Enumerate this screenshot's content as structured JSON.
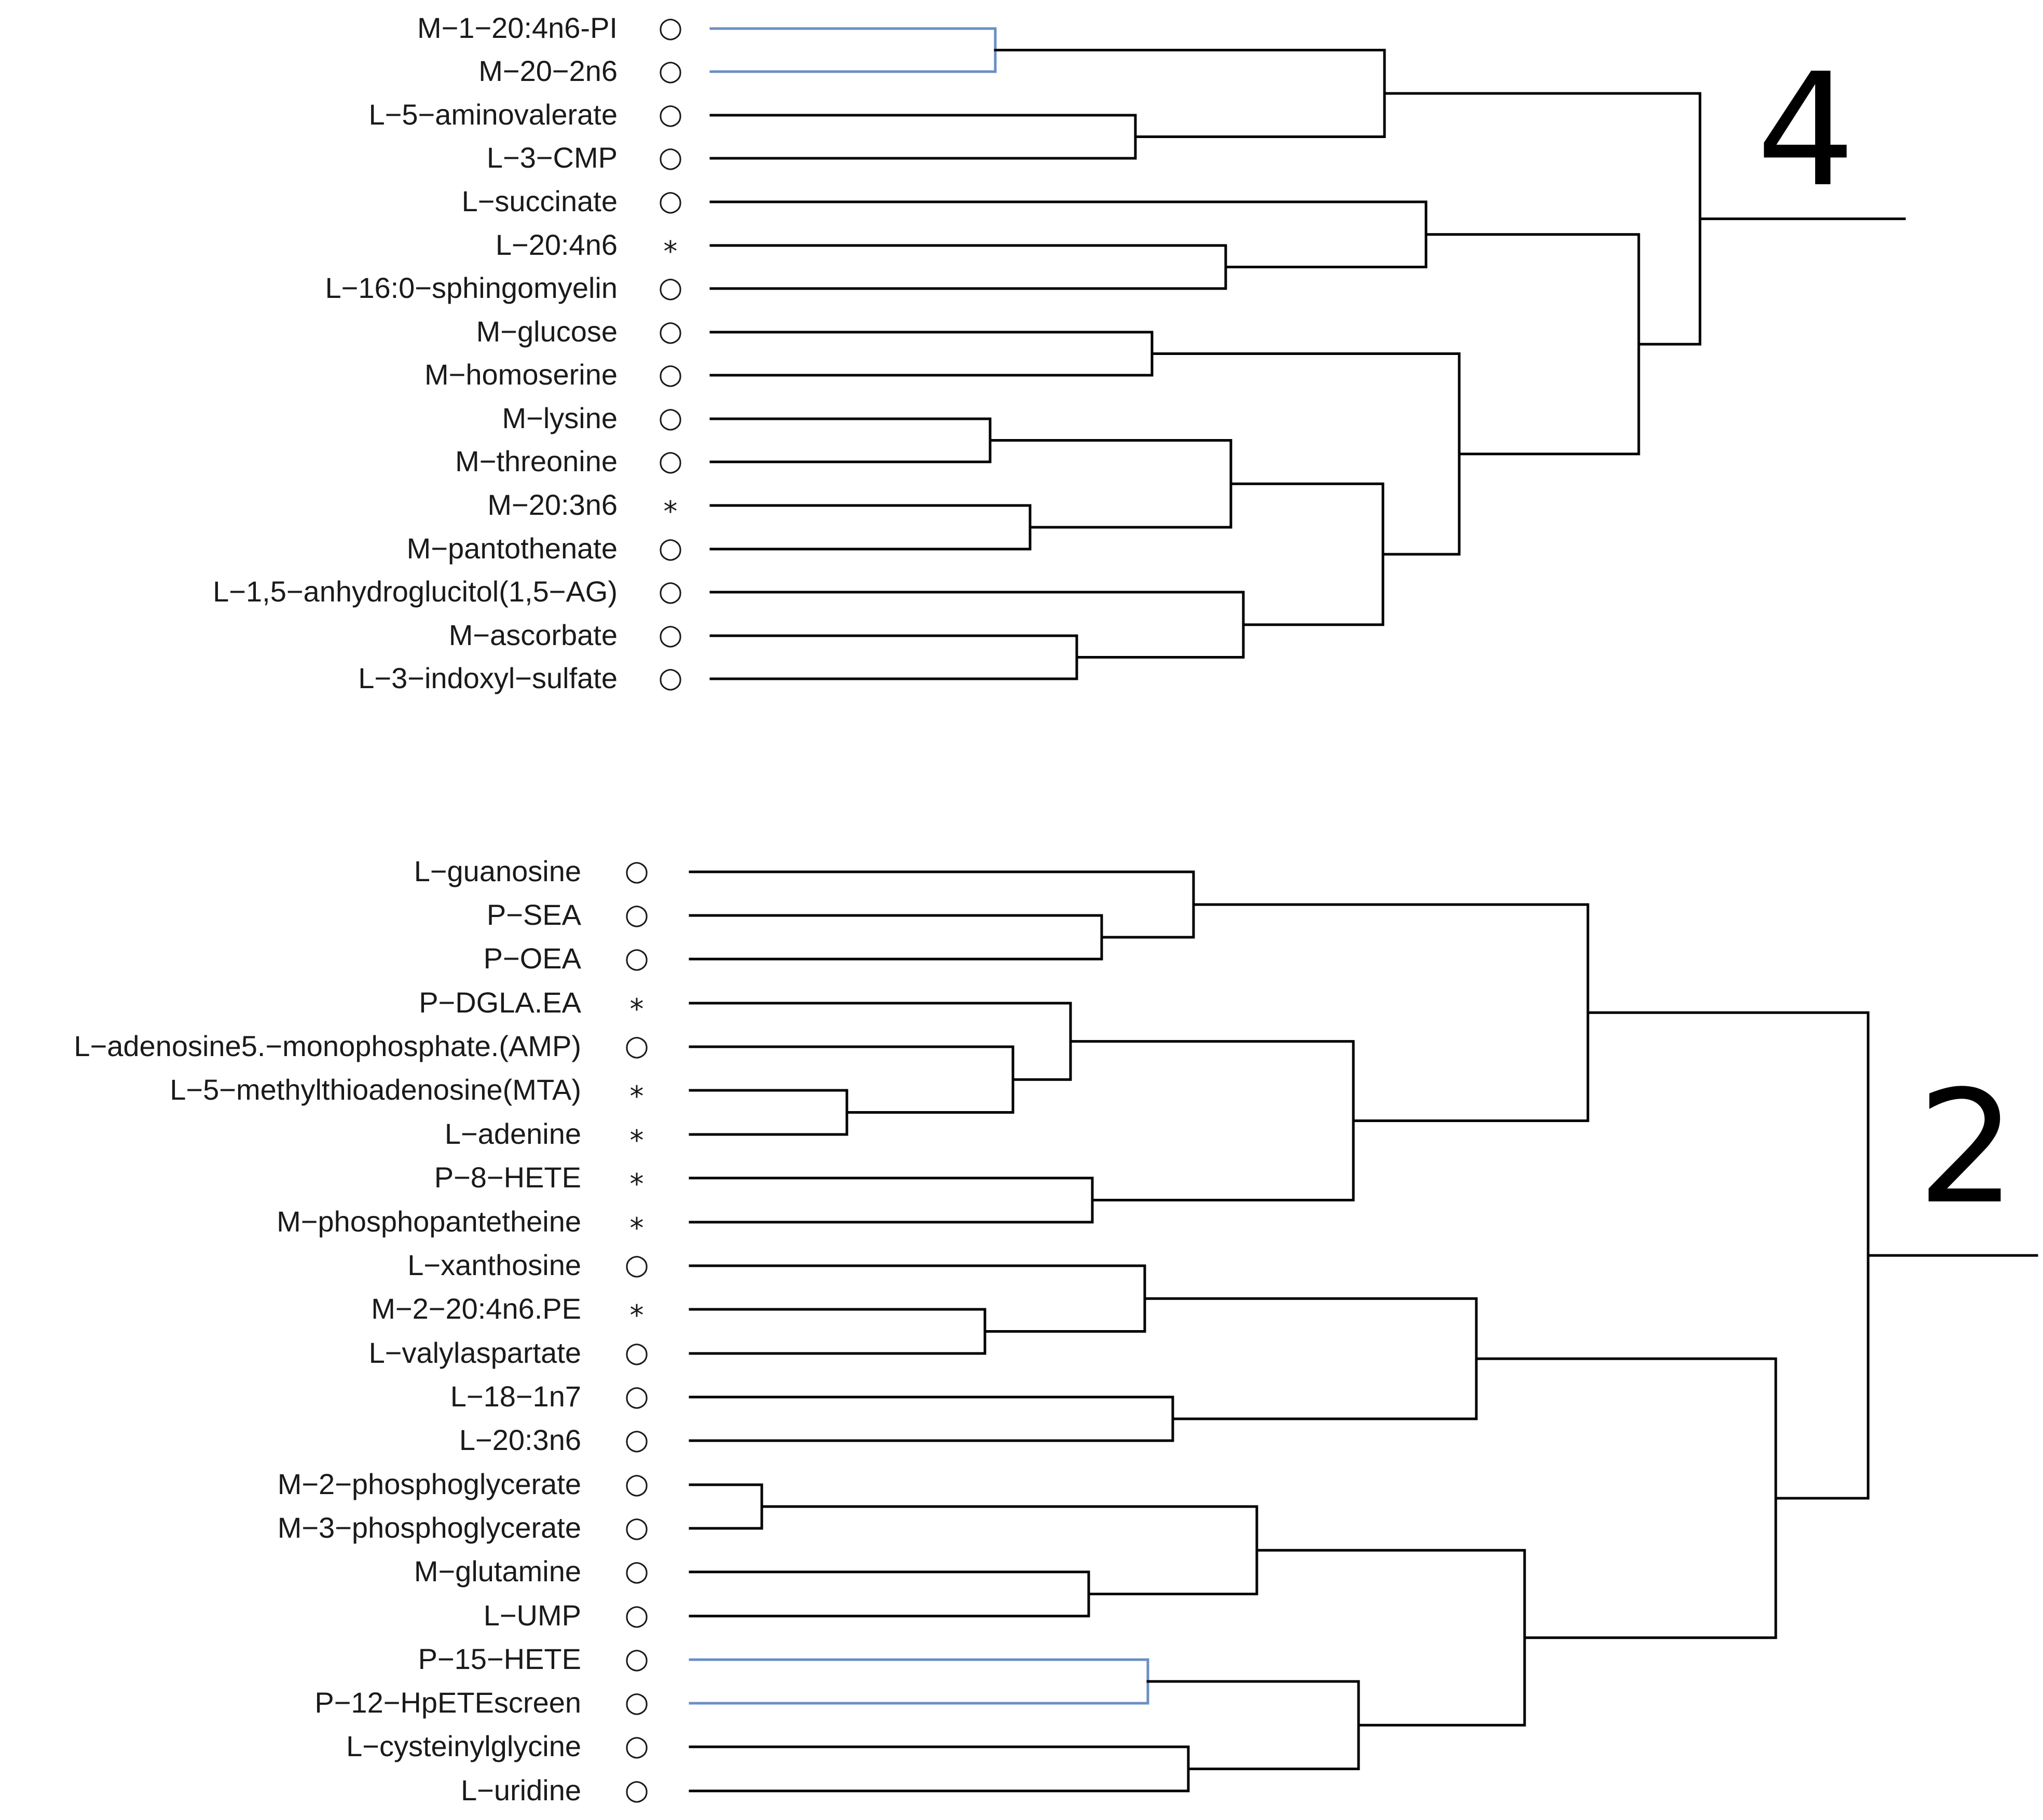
{
  "colors": {
    "line": "#000000",
    "highlight": "#6b8fc4",
    "text": "#1a1a1a"
  },
  "clusters": [
    {
      "number": "4",
      "leaves": [
        {
          "label": "M−1−20:4n6-PI",
          "marker": "○"
        },
        {
          "label": "M−20−2n6",
          "marker": "○"
        },
        {
          "label": "L−5−aminovalerate",
          "marker": "○"
        },
        {
          "label": "L−3−CMP",
          "marker": "○"
        },
        {
          "label": "L−succinate",
          "marker": "○"
        },
        {
          "label": "L−20:4n6",
          "marker": "*"
        },
        {
          "label": "L−16:0−sphingomyelin",
          "marker": "○"
        },
        {
          "label": "M−glucose",
          "marker": "○"
        },
        {
          "label": "M−homoserine",
          "marker": "○"
        },
        {
          "label": "M−lysine",
          "marker": "○"
        },
        {
          "label": "M−threonine",
          "marker": "○"
        },
        {
          "label": "M−20:3n6",
          "marker": "*"
        },
        {
          "label": "M−pantothenate",
          "marker": "○"
        },
        {
          "label": "L−1,5−anhydroglucitol(1,5−AG)",
          "marker": "○"
        },
        {
          "label": "M−ascorbate",
          "marker": "○"
        },
        {
          "label": "L−3−indoxyl−sulfate",
          "marker": "○"
        }
      ]
    },
    {
      "number": "2",
      "leaves": [
        {
          "label": "L−guanosine",
          "marker": "○"
        },
        {
          "label": "P−SEA",
          "marker": "○"
        },
        {
          "label": "P−OEA",
          "marker": "○"
        },
        {
          "label": "P−DGLA.EA",
          "marker": "*"
        },
        {
          "label": "L−adenosine5.−monophosphate.(AMP)",
          "marker": "○"
        },
        {
          "label": "L−5−methylthioadenosine(MTA)",
          "marker": "*"
        },
        {
          "label": "L−adenine",
          "marker": "*"
        },
        {
          "label": "P−8−HETE",
          "marker": "*"
        },
        {
          "label": "M−phosphopantetheine",
          "marker": "*"
        },
        {
          "label": "L−xanthosine",
          "marker": "○"
        },
        {
          "label": "M−2−20:4n6.PE",
          "marker": "*"
        },
        {
          "label": "L−valylaspartate",
          "marker": "○"
        },
        {
          "label": "L−18−1n7",
          "marker": "○"
        },
        {
          "label": "L−20:3n6",
          "marker": "○"
        },
        {
          "label": "M−2−phosphoglycerate",
          "marker": "○"
        },
        {
          "label": "M−3−phosphoglycerate",
          "marker": "○"
        },
        {
          "label": "M−glutamine",
          "marker": "○"
        },
        {
          "label": "L−UMP",
          "marker": "○"
        },
        {
          "label": "P−15−HETE",
          "marker": "○"
        },
        {
          "label": "P−12−HpETEscreen",
          "marker": "○"
        },
        {
          "label": "L−cysteinylglycine",
          "marker": "○"
        },
        {
          "label": "L−uridine",
          "marker": "○"
        }
      ]
    }
  ]
}
